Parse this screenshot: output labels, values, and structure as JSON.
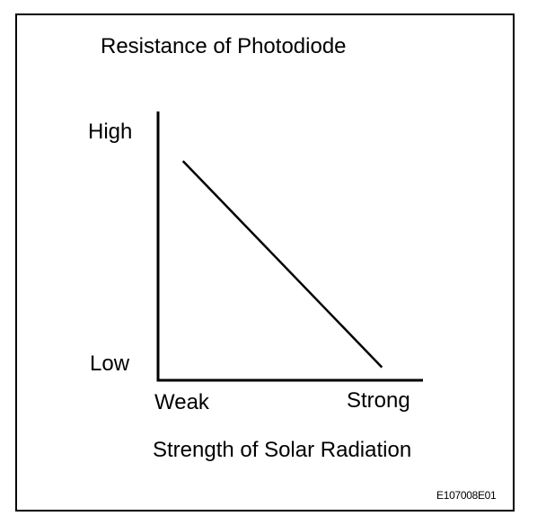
{
  "chart_data": {
    "type": "line",
    "title": "Resistance of Photodiode",
    "xlabel": "Strength of Solar Radiation",
    "ylabel": "",
    "x_ticks": [
      "Weak",
      "Strong"
    ],
    "y_ticks": [
      "High",
      "Low"
    ],
    "series": [
      {
        "x": [
          0.1,
          0.9
        ],
        "y": [
          0.85,
          0.05
        ]
      }
    ],
    "xlim": [
      0,
      1
    ],
    "ylim": [
      0,
      1
    ],
    "grid": false,
    "line_color": "#000000"
  },
  "figure_code": "E107008E01"
}
